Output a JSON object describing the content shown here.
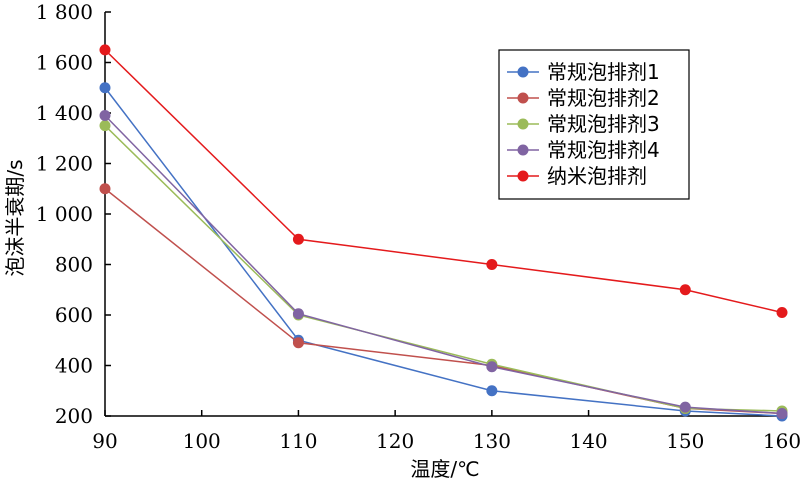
{
  "chart_data": {
    "type": "line",
    "title": "",
    "xlabel": "温度/℃",
    "ylabel": "泡沫半衰期/s",
    "xlim": [
      90,
      160
    ],
    "ylim": [
      200,
      1800
    ],
    "x_ticks": [
      90,
      100,
      110,
      120,
      130,
      140,
      150,
      160
    ],
    "x_tick_labels": [
      "90",
      "100",
      "110",
      "120",
      "130",
      "140",
      "150",
      "160"
    ],
    "y_ticks": [
      200,
      400,
      600,
      800,
      1000,
      1200,
      1400,
      1600,
      1800
    ],
    "y_tick_labels": [
      "200",
      "400",
      "600",
      "800",
      "1 000",
      "1 200",
      "1 400",
      "1 600",
      "1 800"
    ],
    "grid": false,
    "legend_position": "top-right",
    "x": [
      90,
      110,
      130,
      150,
      160
    ],
    "series": [
      {
        "name": "常规泡排剂1",
        "color": "#4472C4",
        "values": [
          1500,
          500,
          300,
          220,
          200
        ]
      },
      {
        "name": "常规泡排剂2",
        "color": "#C0504D",
        "values": [
          1100,
          490,
          400,
          230,
          210
        ]
      },
      {
        "name": "常规泡排剂3",
        "color": "#9BBB59",
        "values": [
          1350,
          600,
          405,
          230,
          220
        ]
      },
      {
        "name": "常规泡排剂4",
        "color": "#8064A2",
        "values": [
          1390,
          605,
          395,
          235,
          210
        ]
      },
      {
        "name": "纳米泡排剂",
        "color": "#E41A1C",
        "values": [
          1650,
          900,
          800,
          700,
          610
        ]
      }
    ]
  }
}
